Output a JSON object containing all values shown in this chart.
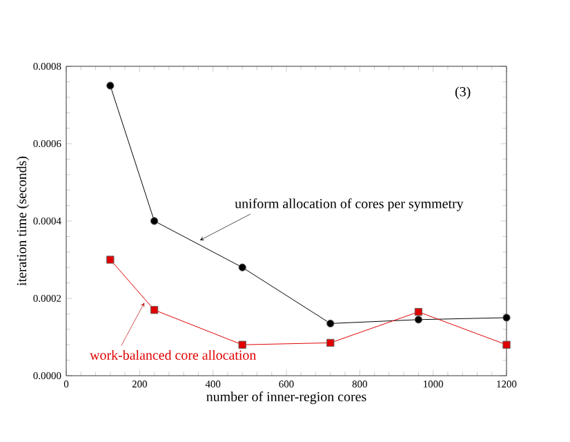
{
  "chart_data": {
    "type": "line",
    "xlabel": "number of inner-region cores",
    "ylabel": "iteration time (seconds)",
    "x": [
      120,
      240,
      480,
      720,
      960,
      1200
    ],
    "series": [
      {
        "name": "uniform allocation of cores per symmetry",
        "color": "#000000",
        "marker": "circle",
        "values": [
          0.00075,
          0.0004,
          0.00028,
          0.000135,
          0.000145,
          0.00015
        ]
      },
      {
        "name": "work-balanced core allocation",
        "color": "#e00000",
        "marker": "square",
        "values": [
          0.0003,
          0.00017,
          8e-05,
          8.5e-05,
          0.000165,
          8e-05
        ]
      }
    ],
    "annotations": [
      "(3)"
    ],
    "xlim": [
      0,
      1200
    ],
    "ylim": [
      0,
      0.0008
    ],
    "xticks": [
      0,
      200,
      400,
      600,
      800,
      1000,
      1200
    ],
    "yticks": [
      {
        "value": 0,
        "label": "0.0000"
      },
      {
        "value": 0.0002,
        "label": "0.0002"
      },
      {
        "value": 0.0004,
        "label": "0.0004"
      },
      {
        "value": 0.0006,
        "label": "0.0006"
      },
      {
        "value": 0.0008,
        "label": "0.0008"
      }
    ],
    "grid": false,
    "line_style": "solid"
  }
}
